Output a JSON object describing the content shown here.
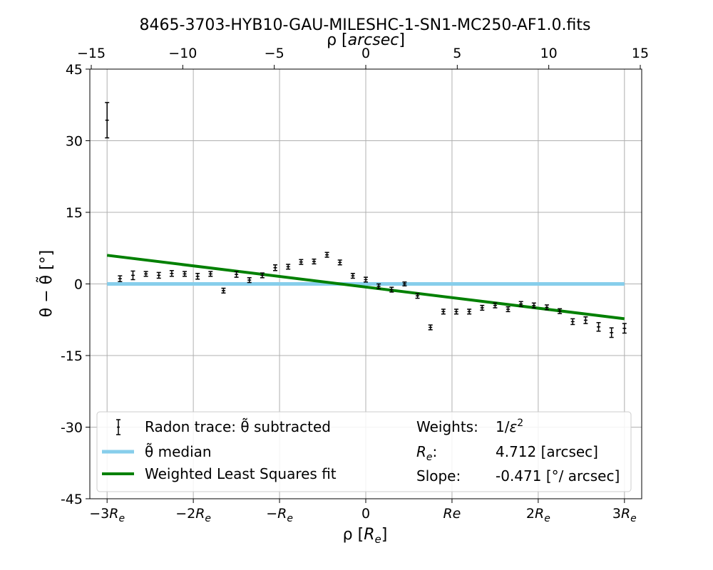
{
  "chart_data": {
    "type": "scatter",
    "title": "8465-3703-HYB10-GAU-MILESHC-1-SN1-MC250-AF1.0.fits",
    "xlabel": "ρ [R_e]",
    "x2label": "ρ [arcsec]",
    "ylabel": "θ − θ̃ [°]",
    "xlim": [
      -3.2,
      3.2
    ],
    "ylim": [
      -45,
      45
    ],
    "grid": true,
    "legend_position": "lower-center",
    "y_ticks": [
      45,
      30,
      15,
      0,
      -15,
      -30,
      -45
    ],
    "y_tick_labels": [
      "45",
      "30",
      "15",
      "0",
      "-15",
      "-30",
      "-45"
    ],
    "x_ticks": [
      -3,
      -2,
      -1,
      0,
      1,
      2,
      3
    ],
    "x_tick_labels": [
      "−3R_e",
      "−2R_e",
      "−R_e",
      "0",
      "Re",
      "2R_e",
      "3R_e"
    ],
    "x2_ticks_arcsec": [
      -15,
      -10,
      -5,
      0,
      5,
      10,
      15
    ],
    "x2_tick_labels": [
      "−15",
      "−10",
      "−5",
      "0",
      "5",
      "10",
      "15"
    ],
    "series": [
      {
        "name": "Radon trace: θ̃ subtracted",
        "kind": "errorbar",
        "color": "#000000",
        "points": [
          {
            "x": -3.0,
            "y": 34.3,
            "err": 3.7
          },
          {
            "x": -2.85,
            "y": 1.1,
            "err": 0.6
          },
          {
            "x": -2.7,
            "y": 1.8,
            "err": 0.9
          },
          {
            "x": -2.55,
            "y": 2.1,
            "err": 0.5
          },
          {
            "x": -2.4,
            "y": 1.8,
            "err": 0.6
          },
          {
            "x": -2.25,
            "y": 2.2,
            "err": 0.6
          },
          {
            "x": -2.1,
            "y": 2.1,
            "err": 0.5
          },
          {
            "x": -1.95,
            "y": 1.6,
            "err": 0.6
          },
          {
            "x": -1.8,
            "y": 2.1,
            "err": 0.5
          },
          {
            "x": -1.65,
            "y": -1.4,
            "err": 0.5
          },
          {
            "x": -1.5,
            "y": 2.0,
            "err": 0.6
          },
          {
            "x": -1.35,
            "y": 0.8,
            "err": 0.5
          },
          {
            "x": -1.2,
            "y": 1.8,
            "err": 0.5
          },
          {
            "x": -1.05,
            "y": 3.4,
            "err": 0.6
          },
          {
            "x": -0.9,
            "y": 3.6,
            "err": 0.5
          },
          {
            "x": -0.75,
            "y": 4.6,
            "err": 0.5
          },
          {
            "x": -0.6,
            "y": 4.7,
            "err": 0.5
          },
          {
            "x": -0.45,
            "y": 6.1,
            "err": 0.5
          },
          {
            "x": -0.3,
            "y": 4.5,
            "err": 0.5
          },
          {
            "x": -0.15,
            "y": 1.7,
            "err": 0.5
          },
          {
            "x": 0.0,
            "y": 0.9,
            "err": 0.5
          },
          {
            "x": 0.15,
            "y": -0.5,
            "err": 0.5
          },
          {
            "x": 0.3,
            "y": -1.2,
            "err": 0.5
          },
          {
            "x": 0.45,
            "y": 0.0,
            "err": 0.4
          },
          {
            "x": 0.6,
            "y": -2.5,
            "err": 0.5
          },
          {
            "x": 0.75,
            "y": -9.1,
            "err": 0.5
          },
          {
            "x": 0.9,
            "y": -5.8,
            "err": 0.5
          },
          {
            "x": 1.05,
            "y": -5.8,
            "err": 0.5
          },
          {
            "x": 1.2,
            "y": -5.8,
            "err": 0.5
          },
          {
            "x": 1.35,
            "y": -5.0,
            "err": 0.5
          },
          {
            "x": 1.5,
            "y": -4.5,
            "err": 0.5
          },
          {
            "x": 1.65,
            "y": -5.3,
            "err": 0.5
          },
          {
            "x": 1.8,
            "y": -4.2,
            "err": 0.5
          },
          {
            "x": 1.95,
            "y": -4.5,
            "err": 0.5
          },
          {
            "x": 2.1,
            "y": -4.9,
            "err": 0.5
          },
          {
            "x": 2.25,
            "y": -5.7,
            "err": 0.5
          },
          {
            "x": 2.4,
            "y": -7.9,
            "err": 0.6
          },
          {
            "x": 2.55,
            "y": -7.6,
            "err": 0.7
          },
          {
            "x": 2.7,
            "y": -9.0,
            "err": 0.9
          },
          {
            "x": 2.85,
            "y": -10.2,
            "err": 1.0
          },
          {
            "x": 3.0,
            "y": -9.3,
            "err": 1.0
          }
        ]
      },
      {
        "name": "θ̃ median",
        "kind": "line",
        "color": "#87ceeb",
        "x": [
          -3.0,
          3.0
        ],
        "y": [
          0,
          0
        ]
      },
      {
        "name": "Weighted Least Squares fit",
        "kind": "line",
        "color": "#008000",
        "x": [
          -3.0,
          3.0
        ],
        "y": [
          6.0,
          -7.3
        ]
      }
    ],
    "legend": {
      "entries": [
        {
          "label": "Radon trace: θ̃ subtracted",
          "kind": "errorbar",
          "color": "#000000"
        },
        {
          "label": "θ̃ median",
          "kind": "line",
          "color": "#87ceeb"
        },
        {
          "label": "Weighted Least Squares fit",
          "kind": "line",
          "color": "#008000"
        }
      ],
      "info": [
        {
          "key": "Weights:",
          "value": "1/ε²"
        },
        {
          "key": "R_e:",
          "value": "4.712 [arcsec]"
        },
        {
          "key": "Slope:",
          "value": "-0.471 [°/ arcsec]"
        }
      ]
    }
  }
}
